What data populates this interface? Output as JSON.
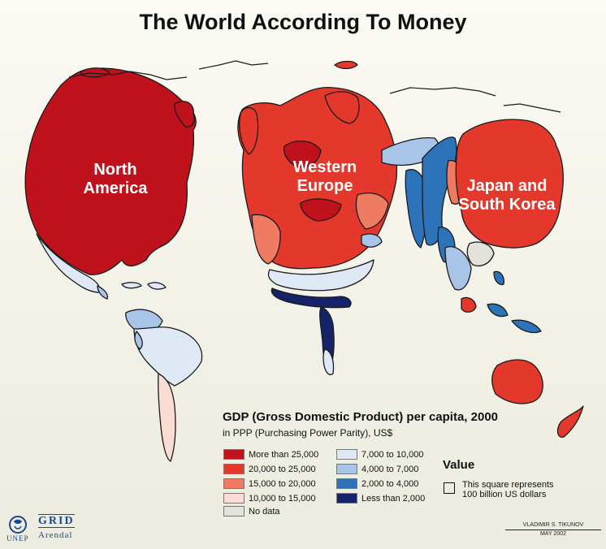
{
  "title": "The World According To Money",
  "labels": {
    "north_america": "North\nAmerica",
    "western_europe": "Western\nEurope",
    "japan_korea": "Japan and\nSouth Korea"
  },
  "legend": {
    "title": "GDP (Gross Domestic Product) per capita, 2000",
    "subtitle": "in PPP (Purchasing Power Parity), US$",
    "items": [
      {
        "label": "More than 25,000",
        "color": "#c0121d"
      },
      {
        "label": "20,000 to 25,000",
        "color": "#e3382b"
      },
      {
        "label": "15,000 to 20,000",
        "color": "#ef7c62"
      },
      {
        "label": "10,000 to 15,000",
        "color": "#fadcd4"
      },
      {
        "label": "7,000 to 10,000",
        "color": "#dfe9f6"
      },
      {
        "label": "4,000 to 7,000",
        "color": "#a8c4e6"
      },
      {
        "label": "2,000 to 4,000",
        "color": "#2c73b9"
      },
      {
        "label": "Less than 2,000",
        "color": "#16236b"
      }
    ],
    "no_data": {
      "label": "No data",
      "color": "#e2e1dc"
    }
  },
  "value_key": {
    "heading": "Value",
    "text": "This square represents\n100 billion US dollars"
  },
  "logos": {
    "unep": "UNEP",
    "grid": "GRID",
    "arendal": "Arendal"
  },
  "credit": {
    "author": "VLADIMIR S. TIKUNOV",
    "date": "MAY 2002"
  }
}
